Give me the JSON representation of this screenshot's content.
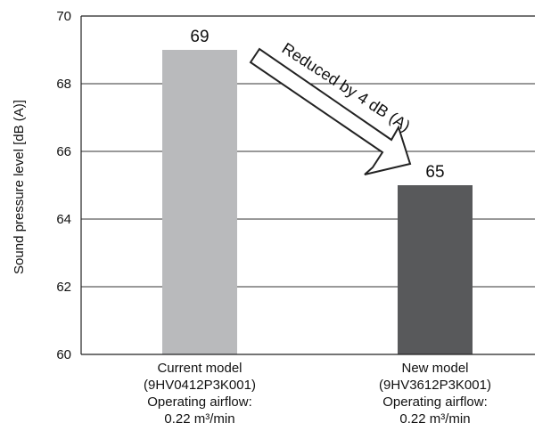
{
  "chart_data": {
    "type": "bar",
    "categories": [
      "Current model",
      "New model"
    ],
    "category_details": [
      [
        "Current model",
        "(9HV0412P3K001)",
        "Operating airflow:",
        "0.22 m³/min"
      ],
      [
        "New model",
        "(9HV3612P3K001)",
        "Operating airflow:",
        "0.22 m³/min"
      ]
    ],
    "values": [
      69,
      65
    ],
    "data_labels": [
      "69",
      "65"
    ],
    "ylabel": "Sound pressure level [dB (A)]",
    "xlabel": "",
    "title": "",
    "ylim": [
      60,
      70
    ],
    "yticks": [
      60,
      62,
      64,
      66,
      68,
      70
    ],
    "grid": true,
    "bar_colors": [
      "#b9babc",
      "#58595b"
    ],
    "annotation": {
      "text": "Reduced by 4 dB (A)",
      "type": "arrow",
      "from_category": 0,
      "to_category": 1
    }
  }
}
